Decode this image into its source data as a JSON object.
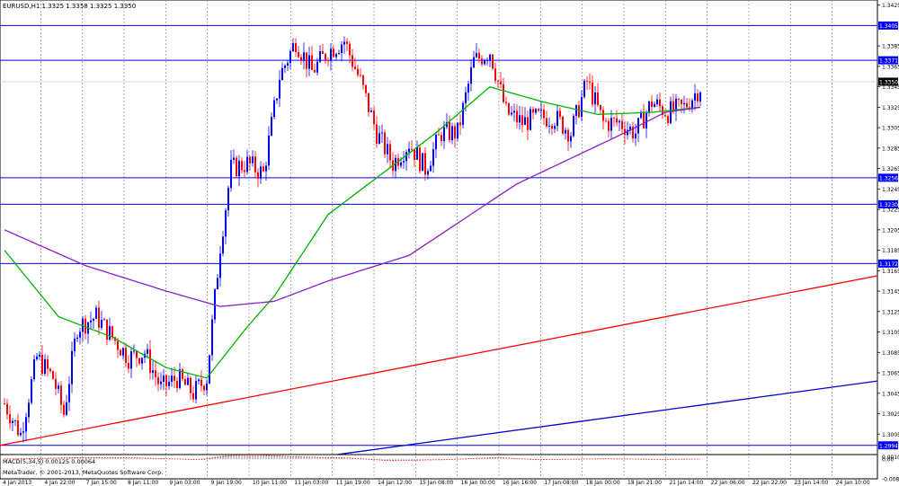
{
  "chart_data": {
    "type": "candlestick",
    "symbol_header": "EURUSD,H1  1.3325 1.3358 1.3325 1.3350",
    "copyright": "MetaTrader, © 2001-2013, MetaQuotes Software Corp.",
    "price_axis": {
      "ticks": [
        "1.3425",
        "1.3385",
        "1.3365",
        "1.3345",
        "1.3325",
        "1.3305",
        "1.3285",
        "1.3265",
        "1.3245",
        "1.3225",
        "1.3205",
        "1.3185",
        "1.3165",
        "1.3145",
        "1.3125",
        "1.3105",
        "1.3085",
        "1.3065",
        "1.3045",
        "1.3025",
        "1.3005"
      ],
      "ylim": [
        1.2985,
        1.343
      ],
      "current_price": "1.3350"
    },
    "x_ticks": [
      "4 Jan 2013",
      "4 Jan 22:00",
      "7 Jan 15:00",
      "8 Jan 11:00",
      "9 Jan 03:00",
      "9 Jan 19:00",
      "10 Jan 11:00",
      "11 Jan 03:00",
      "11 Jan 19:00",
      "14 Jan 12:00",
      "15 Jan 08:00",
      "16 Jan 00:00",
      "16 Jan 16:00",
      "17 Jan 08:00",
      "18 Jan 00:00",
      "18 Jan 21:00",
      "21 Jan 14:00",
      "22 Jan 06:00",
      "22 Jan 22:00",
      "23 Jan 14:00",
      "24 Jan 10:00"
    ],
    "horizontal_levels": [
      {
        "label": "1.3405",
        "price": 1.3405
      },
      {
        "label": "1.3371",
        "price": 1.3371
      },
      {
        "label": "1.3256",
        "price": 1.3256
      },
      {
        "label": "1.3230",
        "price": 1.323
      },
      {
        "label": "1.3172",
        "price": 1.3172
      },
      {
        "label": "1.2994",
        "price": 1.2994
      }
    ],
    "trendlines": [
      {
        "color": "#ff0000",
        "from": {
          "x": "4 Jan 2013",
          "price": 1.2994
        },
        "to": {
          "x": "right edge",
          "price": 1.316
        }
      },
      {
        "color": "#0000cc",
        "from": {
          "x": "16 Jan 00:00",
          "price": 1.2985
        },
        "to": {
          "x": "right edge",
          "price": 1.3057
        }
      }
    ],
    "candles": {
      "count": 259,
      "anchors": [
        {
          "i": 0,
          "price": 1.3035
        },
        {
          "i": 6,
          "price": 1.3005
        },
        {
          "i": 12,
          "price": 1.308
        },
        {
          "i": 18,
          "price": 1.306
        },
        {
          "i": 22,
          "price": 1.3025
        },
        {
          "i": 27,
          "price": 1.311
        },
        {
          "i": 34,
          "price": 1.312
        },
        {
          "i": 40,
          "price": 1.31
        },
        {
          "i": 46,
          "price": 1.308
        },
        {
          "i": 52,
          "price": 1.3085
        },
        {
          "i": 58,
          "price": 1.305
        },
        {
          "i": 64,
          "price": 1.306
        },
        {
          "i": 70,
          "price": 1.3045
        },
        {
          "i": 75,
          "price": 1.306
        },
        {
          "i": 80,
          "price": 1.319
        },
        {
          "i": 84,
          "price": 1.3265
        },
        {
          "i": 90,
          "price": 1.327
        },
        {
          "i": 96,
          "price": 1.326
        },
        {
          "i": 102,
          "price": 1.3355
        },
        {
          "i": 108,
          "price": 1.339
        },
        {
          "i": 114,
          "price": 1.336
        },
        {
          "i": 120,
          "price": 1.338
        },
        {
          "i": 126,
          "price": 1.339
        },
        {
          "i": 132,
          "price": 1.335
        },
        {
          "i": 138,
          "price": 1.33
        },
        {
          "i": 144,
          "price": 1.327
        },
        {
          "i": 150,
          "price": 1.329
        },
        {
          "i": 156,
          "price": 1.3265
        },
        {
          "i": 162,
          "price": 1.33
        },
        {
          "i": 168,
          "price": 1.33
        },
        {
          "i": 174,
          "price": 1.337
        },
        {
          "i": 180,
          "price": 1.338
        },
        {
          "i": 186,
          "price": 1.332
        },
        {
          "i": 192,
          "price": 1.331
        },
        {
          "i": 198,
          "price": 1.3315
        },
        {
          "i": 204,
          "price": 1.3315
        },
        {
          "i": 210,
          "price": 1.33
        },
        {
          "i": 216,
          "price": 1.335
        },
        {
          "i": 222,
          "price": 1.331
        },
        {
          "i": 228,
          "price": 1.331
        },
        {
          "i": 234,
          "price": 1.33
        },
        {
          "i": 240,
          "price": 1.333
        },
        {
          "i": 246,
          "price": 1.332
        },
        {
          "i": 252,
          "price": 1.3325
        },
        {
          "i": 258,
          "price": 1.3345
        }
      ]
    },
    "moving_averages": [
      {
        "color": "#00b400",
        "points": [
          {
            "i": 0,
            "price": 1.3185
          },
          {
            "i": 20,
            "price": 1.312
          },
          {
            "i": 40,
            "price": 1.31
          },
          {
            "i": 60,
            "price": 1.307
          },
          {
            "i": 75,
            "price": 1.306
          },
          {
            "i": 90,
            "price": 1.311
          },
          {
            "i": 100,
            "price": 1.314
          },
          {
            "i": 120,
            "price": 1.322
          },
          {
            "i": 140,
            "price": 1.326
          },
          {
            "i": 160,
            "price": 1.33
          },
          {
            "i": 180,
            "price": 1.3345
          },
          {
            "i": 200,
            "price": 1.333
          },
          {
            "i": 220,
            "price": 1.3318
          },
          {
            "i": 240,
            "price": 1.332
          },
          {
            "i": 258,
            "price": 1.3325
          }
        ]
      },
      {
        "color": "#8b1ec9",
        "points": [
          {
            "i": 0,
            "price": 1.3205
          },
          {
            "i": 30,
            "price": 1.317
          },
          {
            "i": 60,
            "price": 1.3145
          },
          {
            "i": 80,
            "price": 1.313
          },
          {
            "i": 100,
            "price": 1.3135
          },
          {
            "i": 120,
            "price": 1.3155
          },
          {
            "i": 150,
            "price": 1.318
          },
          {
            "i": 170,
            "price": 1.3215
          },
          {
            "i": 190,
            "price": 1.325
          },
          {
            "i": 210,
            "price": 1.3275
          },
          {
            "i": 230,
            "price": 1.33
          },
          {
            "i": 245,
            "price": 1.332
          },
          {
            "i": 258,
            "price": 1.3325
          }
        ]
      }
    ],
    "macd": {
      "label": "MACD(5,34,5) 0.00125 0.00064",
      "yticks": [
        "0.00100",
        "0.00",
        "-0.00836"
      ],
      "histogram_anchors": [
        {
          "i": 0,
          "value": 0.0001
        },
        {
          "i": 25,
          "value": 0.0007
        },
        {
          "i": 45,
          "value": 0.0006
        },
        {
          "i": 70,
          "value": -0.0002
        },
        {
          "i": 82,
          "value": 0.0017
        },
        {
          "i": 90,
          "value": 0.0019
        },
        {
          "i": 105,
          "value": 0.001
        },
        {
          "i": 125,
          "value": 0.0005
        },
        {
          "i": 140,
          "value": -0.0006
        },
        {
          "i": 160,
          "value": -0.0002
        },
        {
          "i": 180,
          "value": 0.0007
        },
        {
          "i": 195,
          "value": -0.0002
        },
        {
          "i": 220,
          "value": 0.0002
        },
        {
          "i": 240,
          "value": -0.0001
        },
        {
          "i": 258,
          "value": 0.0001
        }
      ],
      "ylim": [
        -0.00836,
        0.0016
      ]
    },
    "colors": {
      "bull_candle": "#0000ff",
      "bear_candle": "#ff0000",
      "level_line": "#0000ff",
      "grid": "#888888",
      "macd_histogram": "#888888",
      "macd_signal": "#ff0000"
    }
  }
}
